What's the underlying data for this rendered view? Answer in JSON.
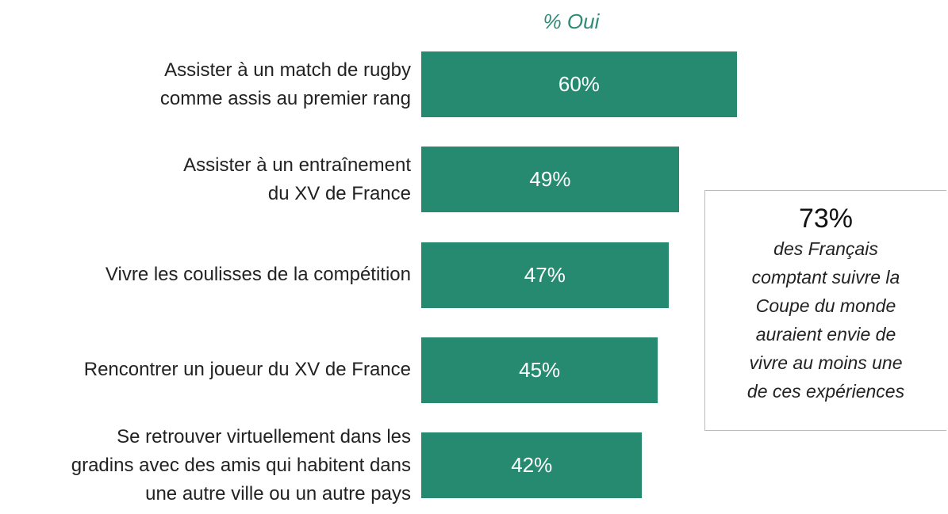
{
  "chart_data": {
    "type": "bar",
    "orientation": "horizontal",
    "subtitle": "% Oui",
    "categories": [
      "Assister à un match de rugby\ncomme assis au premier rang",
      "Assister à un entraînement\ndu XV de France",
      "Vivre les coulisses de la compétition",
      "Rencontrer un joueur du XV de France",
      "Se retrouver virtuellement dans les\ngradins avec des amis qui habitent dans\nune autre ville ou un autre pays"
    ],
    "values": [
      60,
      49,
      47,
      45,
      42
    ],
    "value_labels": [
      "60%",
      "49%",
      "47%",
      "45%",
      "42%"
    ],
    "color": "#268a71",
    "xlim": [
      0,
      100
    ],
    "callout": {
      "headline": "73%",
      "text": "des Français\ncomptant suivre la\nCoupe du monde\nauraient envie de\nvivre au moins une\nde ces expériences"
    }
  }
}
